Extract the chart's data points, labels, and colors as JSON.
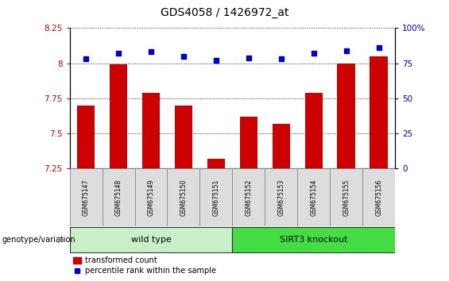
{
  "title": "GDS4058 / 1426972_at",
  "samples": [
    "GSM675147",
    "GSM675148",
    "GSM675149",
    "GSM675150",
    "GSM675151",
    "GSM675152",
    "GSM675153",
    "GSM675154",
    "GSM675155",
    "GSM675156"
  ],
  "transformed_count": [
    7.7,
    7.99,
    7.79,
    7.7,
    7.32,
    7.62,
    7.57,
    7.79,
    8.0,
    8.05
  ],
  "percentile_rank": [
    78,
    82,
    83,
    80,
    77,
    79,
    78,
    82,
    84,
    86
  ],
  "groups": [
    {
      "label": "wild type",
      "start": 0,
      "end": 4,
      "color": "#C8F0C8"
    },
    {
      "label": "SIRT3 knockout",
      "start": 5,
      "end": 9,
      "color": "#44DD44"
    }
  ],
  "ylim_left": [
    7.25,
    8.25
  ],
  "ylim_right": [
    0,
    100
  ],
  "yticks_left": [
    7.25,
    7.5,
    7.75,
    8.0,
    8.25
  ],
  "ytick_labels_left": [
    "7.25",
    "7.5",
    "7.75",
    "8",
    "8.25"
  ],
  "yticks_right": [
    0,
    25,
    50,
    75,
    100
  ],
  "ytick_labels_right": [
    "0",
    "25",
    "50",
    "75",
    "100%"
  ],
  "bar_color": "#CC0000",
  "dot_color": "#0000CC",
  "grid_color": "#000000",
  "background_color": "#FFFFFF",
  "plot_bg": "#FFFFFF",
  "tick_color_left": "#CC0000",
  "tick_color_right": "#0000CC",
  "genotype_label": "genotype/variation",
  "legend_bar_label": "transformed count",
  "legend_dot_label": "percentile rank within the sample",
  "title_fontsize": 10,
  "tick_fontsize": 7.5,
  "sample_fontsize": 5.5,
  "group_fontsize": 8,
  "legend_fontsize": 7
}
